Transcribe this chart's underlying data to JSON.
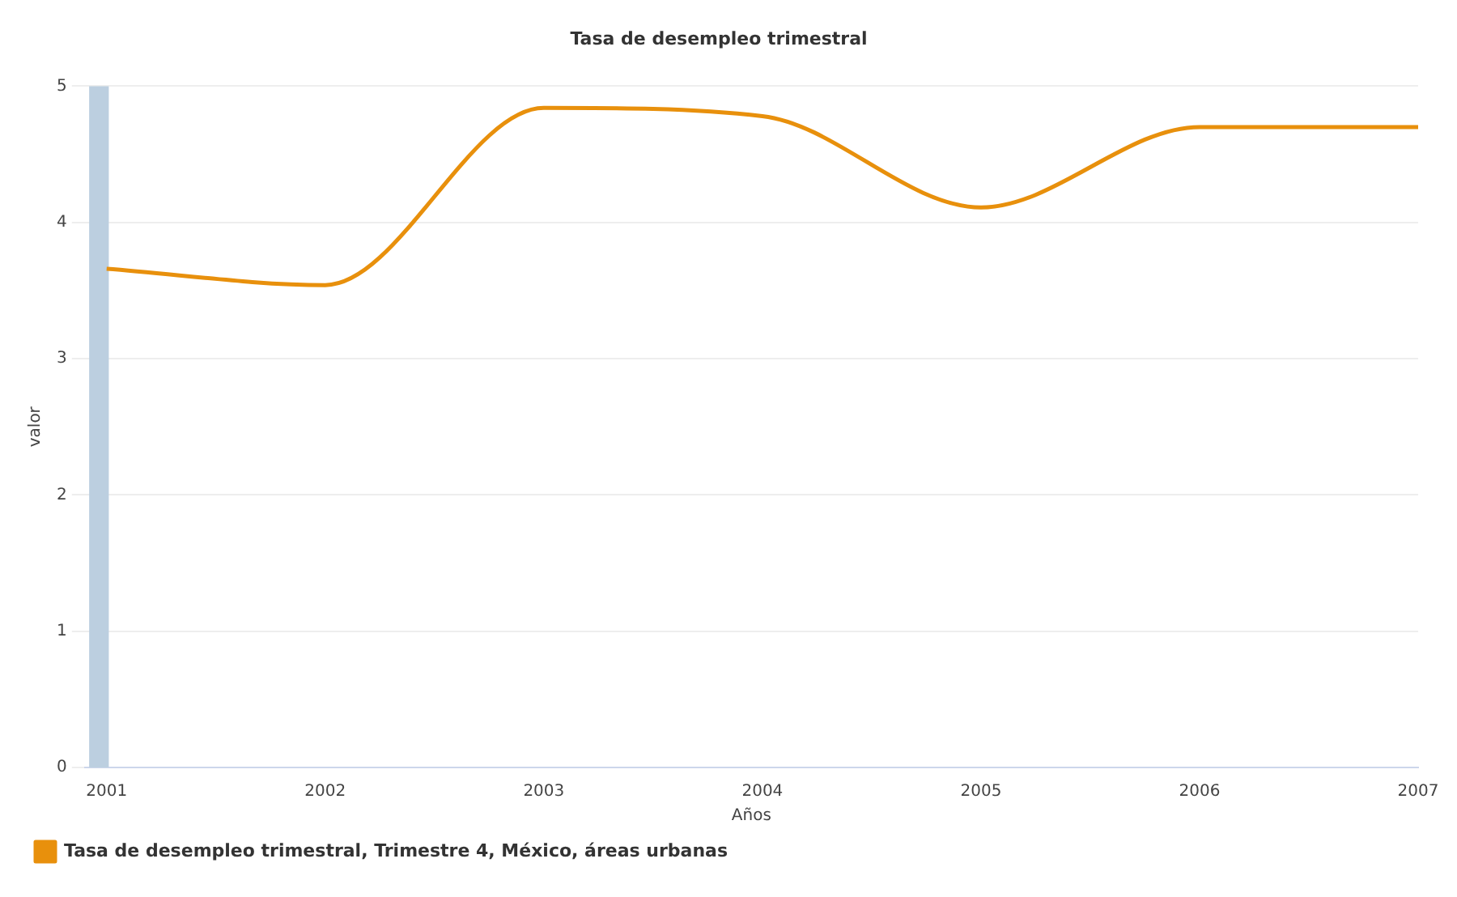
{
  "chart_data": {
    "type": "line",
    "title": "Tasa de desempleo trimestral",
    "xlabel": "Años",
    "ylabel": "valor",
    "x": [
      2001,
      2002,
      2003,
      2004,
      2005,
      2006,
      2007
    ],
    "series": [
      {
        "name": "Tasa de desempleo trimestral, Trimestre 4, México, áreas urbanas",
        "color": "#e8900c",
        "values": [
          3.66,
          3.54,
          4.84,
          4.78,
          4.11,
          4.7,
          4.7
        ]
      }
    ],
    "xlim": [
      2000.9,
      2007
    ],
    "xticks": [
      2001,
      2002,
      2003,
      2004,
      2005,
      2006,
      2007
    ],
    "ylim": [
      0,
      5
    ],
    "yticks": [
      0,
      1,
      2,
      3,
      4,
      5
    ],
    "bands": [
      {
        "axis": "x",
        "from": 2000.92,
        "to": 2001.01,
        "color": "#bccfe0"
      }
    ],
    "grid": "y",
    "legend": "bottom left",
    "marker": "none",
    "line_style": "solid"
  }
}
